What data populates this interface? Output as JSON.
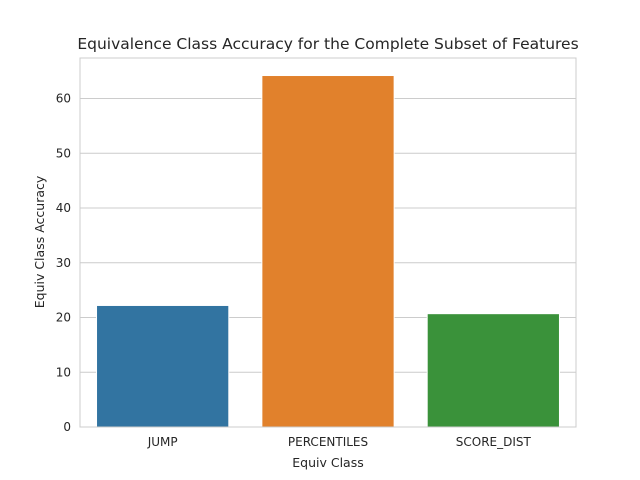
{
  "chart_data": {
    "type": "bar",
    "title": "Equivalence Class Accuracy for the Complete Subset of Features",
    "xlabel": "Equiv Class",
    "ylabel": "Equiv Class Accuracy",
    "categories": [
      "JUMP",
      "PERCENTILES",
      "SCORE_DIST"
    ],
    "values": [
      22.2,
      64.2,
      20.7
    ],
    "colors": [
      "#3274a1",
      "#e1812c",
      "#3a923a"
    ],
    "ylim": [
      0,
      67.4
    ],
    "yticks": [
      0,
      10,
      20,
      30,
      40,
      50,
      60
    ],
    "grid": true,
    "legend": "none"
  }
}
